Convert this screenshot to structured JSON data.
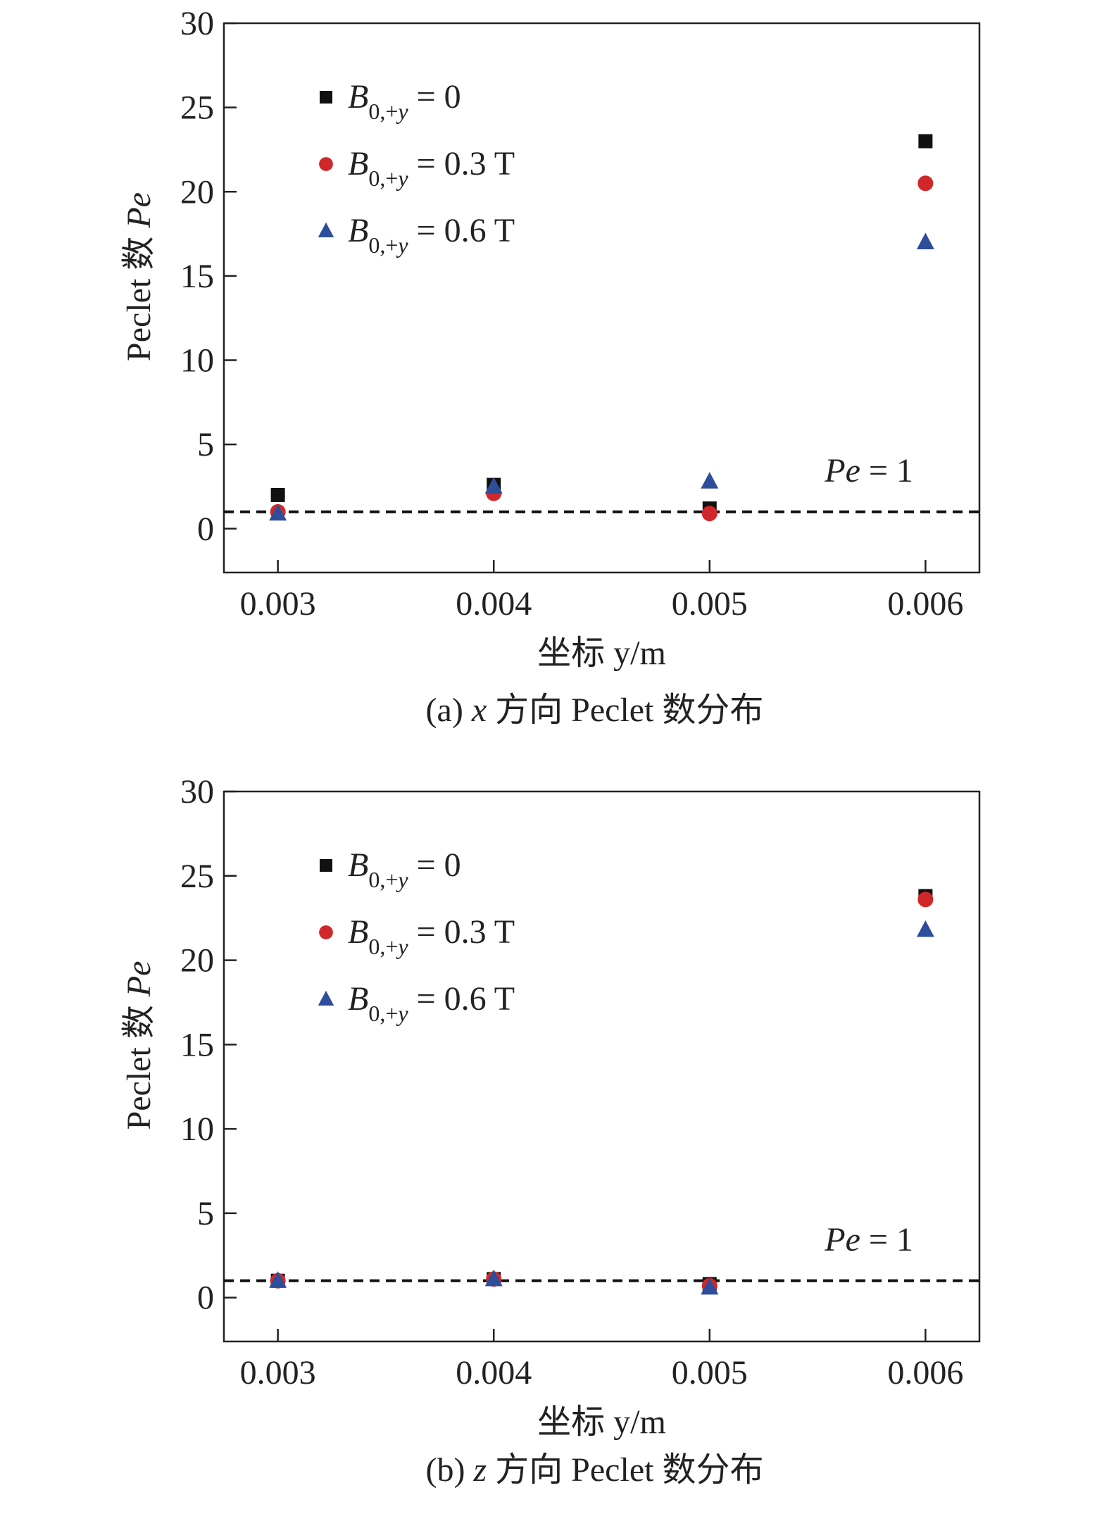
{
  "colors": {
    "B0": "#111111",
    "B03": "#d0282a",
    "B06": "#2e4d9a",
    "axis": "#222222"
  },
  "chart_data": [
    {
      "type": "scatter",
      "caption": "(a) x 方向 Peclet 数分布",
      "caption_parts": {
        "prefix": "(a) ",
        "var": "x",
        "suffix": " 方向 Peclet 数分布"
      },
      "ylabel": "Peclet 数 Pe",
      "ylabel_parts": {
        "text": "Peclet 数 ",
        "var": "Pe"
      },
      "xlabel": "坐标 y/m",
      "xlabel_parts": {
        "text": "坐标 ",
        "var": "y",
        "unit": "/m"
      },
      "xlim": [
        0.00275,
        0.00625
      ],
      "ylim": [
        -2.6,
        30
      ],
      "xticks": [
        0.003,
        0.004,
        0.005,
        0.006
      ],
      "xtick_labels": [
        "0.003",
        "0.004",
        "0.005",
        "0.006"
      ],
      "yticks": [
        0,
        5,
        10,
        15,
        20,
        25,
        30
      ],
      "ytick_labels": [
        "0",
        "5",
        "10",
        "15",
        "20",
        "25",
        "30"
      ],
      "x": [
        0.003,
        0.004,
        0.005,
        0.006
      ],
      "series": [
        {
          "name": "B0,+y = 0",
          "value_text": "= 0",
          "marker": "square",
          "values": [
            2.0,
            2.6,
            1.2,
            23.0
          ]
        },
        {
          "name": "B0,+y = 0.3 T",
          "value_text": "= 0.3 T",
          "marker": "circle",
          "values": [
            1.0,
            2.1,
            0.9,
            20.5
          ]
        },
        {
          "name": "B0,+y = 0.6 T",
          "value_text": "= 0.6 T",
          "marker": "triangle",
          "values": [
            0.9,
            2.5,
            2.8,
            17.0
          ]
        }
      ],
      "reference_line": {
        "y": 1,
        "label": "Pe = 1",
        "label_var": "Pe",
        "label_rest": " = 1"
      },
      "legend_placement": "top-left",
      "grid": false
    },
    {
      "type": "scatter",
      "caption": "(b) z 方向 Peclet 数分布",
      "caption_parts": {
        "prefix": "(b) ",
        "var": "z",
        "suffix": " 方向 Peclet 数分布"
      },
      "ylabel": "Peclet 数 Pe",
      "ylabel_parts": {
        "text": "Peclet 数 ",
        "var": "Pe"
      },
      "xlabel": "坐标 y/m",
      "xlabel_parts": {
        "text": "坐标 ",
        "var": "y",
        "unit": "/m"
      },
      "xlim": [
        0.00275,
        0.00625
      ],
      "ylim": [
        -2.6,
        30
      ],
      "xticks": [
        0.003,
        0.004,
        0.005,
        0.006
      ],
      "xtick_labels": [
        "0.003",
        "0.004",
        "0.005",
        "0.006"
      ],
      "yticks": [
        0,
        5,
        10,
        15,
        20,
        25,
        30
      ],
      "ytick_labels": [
        "0",
        "5",
        "10",
        "15",
        "20",
        "25",
        "30"
      ],
      "x": [
        0.003,
        0.004,
        0.005,
        0.006
      ],
      "series": [
        {
          "name": "B0,+y = 0",
          "value_text": "= 0",
          "marker": "square",
          "values": [
            1.0,
            1.1,
            0.8,
            23.8
          ]
        },
        {
          "name": "B0,+y = 0.3 T",
          "value_text": "= 0.3 T",
          "marker": "circle",
          "values": [
            1.0,
            1.1,
            0.7,
            23.6
          ]
        },
        {
          "name": "B0,+y = 0.6 T",
          "value_text": "= 0.6 T",
          "marker": "triangle",
          "values": [
            1.0,
            1.1,
            0.6,
            21.8
          ]
        }
      ],
      "reference_line": {
        "y": 1,
        "label": "Pe = 1",
        "label_var": "Pe",
        "label_rest": " = 1"
      },
      "legend_placement": "top-left",
      "grid": false
    }
  ]
}
